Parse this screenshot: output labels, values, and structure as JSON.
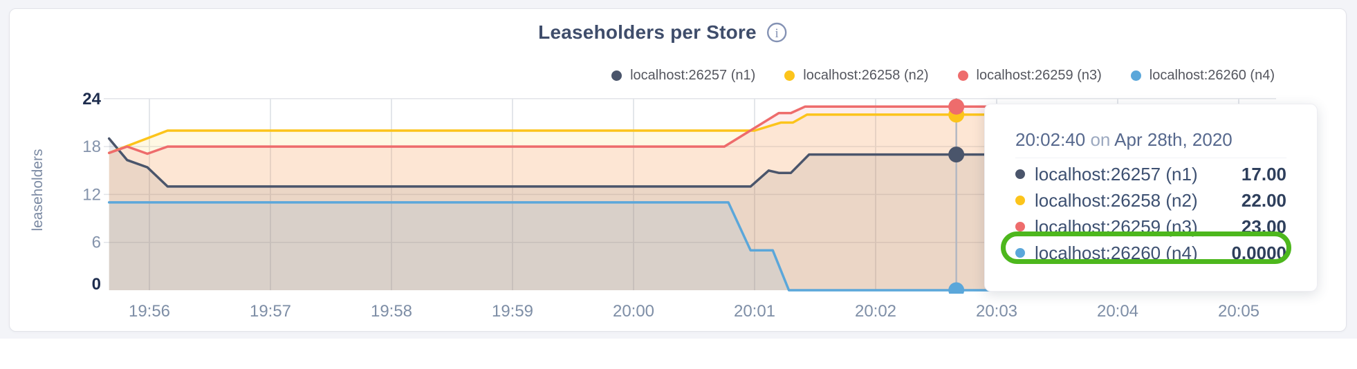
{
  "page": {
    "title": "Leaseholders per Store"
  },
  "chart_data": {
    "type": "area",
    "title": "Leaseholders per Store",
    "xlabel": "",
    "ylabel": "leaseholders",
    "ylim": [
      0,
      24
    ],
    "yticks": [
      0,
      6,
      12,
      18,
      24
    ],
    "xticks": [
      "19:56",
      "19:57",
      "19:58",
      "19:59",
      "20:00",
      "20:01",
      "20:02",
      "20:03",
      "20:04",
      "20:05"
    ],
    "x_unit": "seconds relative to 19:56:00, one tick per minute",
    "grid": true,
    "legend_position": "top-right",
    "series": [
      {
        "name": "localhost:26257 (n1)",
        "color": "#4a556b",
        "points": [
          [
            -20,
            19
          ],
          [
            -11,
            16.3
          ],
          [
            -1,
            15.4
          ],
          [
            9,
            13
          ],
          [
            298,
            13
          ],
          [
            307,
            15
          ],
          [
            312,
            14.7
          ],
          [
            318,
            14.7
          ],
          [
            327,
            17
          ],
          [
            558,
            17
          ]
        ]
      },
      {
        "name": "localhost:26258 (n2)",
        "color": "#fcc41b",
        "points": [
          [
            -20,
            17.2
          ],
          [
            9,
            20
          ],
          [
            300,
            20
          ],
          [
            313,
            21
          ],
          [
            319,
            21
          ],
          [
            326,
            22
          ],
          [
            558,
            22
          ]
        ]
      },
      {
        "name": "localhost:26259 (n3)",
        "color": "#ee6c6c",
        "points": [
          [
            -20,
            17.2
          ],
          [
            -11,
            18
          ],
          [
            -1,
            17.1
          ],
          [
            9,
            18
          ],
          [
            285,
            18
          ],
          [
            312,
            22.2
          ],
          [
            318,
            22.2
          ],
          [
            325,
            23
          ],
          [
            558,
            23
          ]
        ]
      },
      {
        "name": "localhost:26260 (n4)",
        "color": "#5ba7da",
        "points": [
          [
            -20,
            11
          ],
          [
            287,
            11
          ],
          [
            298,
            5
          ],
          [
            309,
            5
          ],
          [
            317,
            0
          ],
          [
            558,
            0
          ]
        ]
      }
    ],
    "hover": {
      "time_label": "20:02:40",
      "t": 400,
      "values": [
        17,
        22,
        23,
        0
      ]
    }
  },
  "tooltip": {
    "time": "20:02:40",
    "connector": "on",
    "date": "Apr 28th, 2020",
    "rows": [
      {
        "label": "localhost:26257 (n1)",
        "value": "17.00",
        "highlighted": false
      },
      {
        "label": "localhost:26258 (n2)",
        "value": "22.00",
        "highlighted": false
      },
      {
        "label": "localhost:26259 (n3)",
        "value": "23.00",
        "highlighted": false
      },
      {
        "label": "localhost:26260 (n4)",
        "value": "0.0000",
        "highlighted": true
      }
    ],
    "highlight_color": "#4db71d"
  },
  "colors": {
    "title": "#3f4d6b",
    "axis_tick_muted": "#8493ab",
    "axis_tick_strong": "#1e2d4e",
    "x_tick": "#7e8ea6",
    "grid_vertical": "#dadde3",
    "grid_horizontal": "#e2e4e9",
    "hover_line": "#b3b8c2",
    "page_background": "#f3f4f8"
  }
}
